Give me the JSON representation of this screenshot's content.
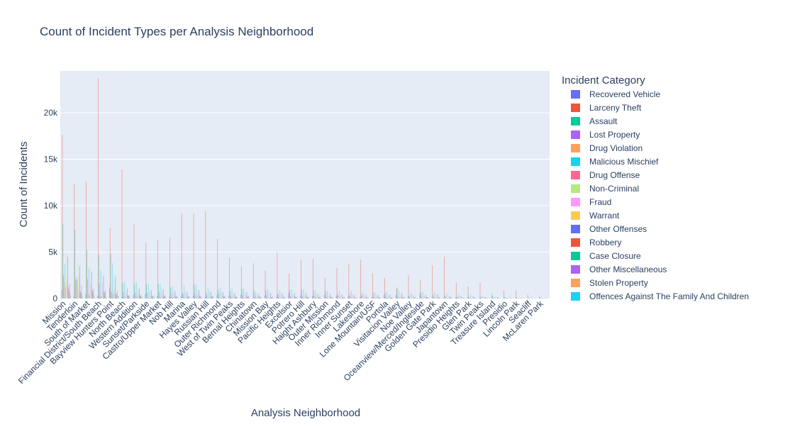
{
  "chart_data": {
    "type": "bar",
    "title": "Count of Incident Types per Analysis Neighborhood",
    "xlabel": "Analysis Neighborhood",
    "ylabel": "Count of Incidents",
    "ylim": [
      0,
      24500
    ],
    "yticks": [
      0,
      5000,
      10000,
      15000,
      20000
    ],
    "ytick_labels": [
      "0",
      "5k",
      "10k",
      "15k",
      "20k"
    ],
    "grid": true,
    "legend_position": "right",
    "legend_title": "Incident Category",
    "categories": [
      "Mission",
      "Tenderloin",
      "South of Market",
      "Financial District/South Beach",
      "Bayview Hunters Point",
      "North Beach",
      "Western Addition",
      "Sunset/Parkside",
      "Castro/Upper Market",
      "Nob Hill",
      "Marina",
      "Hayes Valley",
      "Russian Hill",
      "Outer Richmond",
      "West of Twin Peaks",
      "Bernal Heights",
      "Chinatown",
      "Mission Bay",
      "Pacific Heights",
      "Excelsior",
      "Potrero Hill",
      "Haight Ashbury",
      "Outer Mission",
      "Inner Richmond",
      "Inner Sunset",
      "Lakeshore",
      "Lone Mountain/USF",
      "Portola",
      "Visitacion Valley",
      "Noe Valley",
      "Oceanview/Merced/Ingleside",
      "Golden Gate Park",
      "Japantown",
      "Presidio Heights",
      "Glen Park",
      "Twin Peaks",
      "Treasure Island",
      "Presidio",
      "Lincoln Park",
      "Seacliff",
      "McLaren Park"
    ],
    "series": [
      {
        "name": "Recovered Vehicle",
        "color": "#636efa",
        "values": [
          900,
          200,
          500,
          300,
          1200,
          100,
          400,
          500,
          300,
          150,
          250,
          300,
          150,
          350,
          300,
          400,
          80,
          300,
          200,
          600,
          350,
          250,
          400,
          250,
          250,
          200,
          200,
          400,
          400,
          200,
          500,
          50,
          100,
          150,
          150,
          100,
          100,
          30,
          20,
          20,
          60
        ]
      },
      {
        "name": "Larceny Theft",
        "color": "#ef553b",
        "values": [
          17600,
          12300,
          12600,
          23700,
          7600,
          13900,
          8000,
          6000,
          6300,
          6500,
          9200,
          9100,
          9400,
          6400,
          4400,
          3500,
          3800,
          3000,
          5000,
          2700,
          4200,
          4300,
          2200,
          3300,
          3700,
          4200,
          2700,
          2200,
          1100,
          2500,
          2000,
          3600,
          4500,
          1700,
          1300,
          1700,
          500,
          900,
          900,
          400,
          200
        ]
      },
      {
        "name": "Assault",
        "color": "#00cc96",
        "values": [
          8000,
          7400,
          5200,
          4700,
          4800,
          1700,
          1600,
          1500,
          1500,
          1200,
          600,
          1500,
          700,
          900,
          800,
          1000,
          900,
          900,
          500,
          900,
          1000,
          800,
          800,
          500,
          500,
          500,
          600,
          600,
          1200,
          300,
          700,
          400,
          300,
          200,
          200,
          200,
          300,
          150,
          60,
          40,
          80
        ]
      },
      {
        "name": "Lost Property",
        "color": "#ab63fa",
        "values": [
          2500,
          2000,
          2100,
          1600,
          800,
          700,
          600,
          600,
          700,
          500,
          500,
          500,
          400,
          500,
          300,
          400,
          300,
          400,
          400,
          300,
          300,
          300,
          200,
          300,
          300,
          300,
          200,
          200,
          200,
          200,
          200,
          200,
          150,
          100,
          100,
          80,
          50,
          60,
          30,
          20,
          20
        ]
      },
      {
        "name": "Drug Violation",
        "color": "#ffa15a",
        "values": [
          1800,
          2300,
          600,
          400,
          600,
          200,
          300,
          100,
          200,
          200,
          100,
          200,
          100,
          100,
          100,
          100,
          100,
          100,
          50,
          100,
          100,
          100,
          80,
          50,
          50,
          50,
          50,
          50,
          100,
          30,
          80,
          100,
          30,
          20,
          20,
          20,
          20,
          10,
          10,
          5,
          10
        ]
      },
      {
        "name": "Malicious Mischief",
        "color": "#19d3f3",
        "values": [
          3700,
          2200,
          3200,
          3100,
          3800,
          1800,
          1800,
          1600,
          1600,
          1300,
          1400,
          1500,
          1100,
          1200,
          1100,
          1100,
          700,
          1000,
          900,
          1000,
          1000,
          900,
          800,
          800,
          800,
          700,
          700,
          700,
          900,
          600,
          700,
          700,
          500,
          400,
          400,
          300,
          200,
          150,
          100,
          60,
          80
        ]
      },
      {
        "name": "Drug Offense",
        "color": "#ff6692",
        "values": [
          1200,
          1900,
          400,
          250,
          500,
          150,
          200,
          100,
          150,
          150,
          80,
          150,
          80,
          80,
          80,
          80,
          80,
          80,
          40,
          80,
          80,
          80,
          60,
          40,
          40,
          40,
          40,
          40,
          80,
          20,
          60,
          80,
          20,
          15,
          15,
          15,
          15,
          8,
          8,
          4,
          8
        ]
      },
      {
        "name": "Non-Criminal",
        "color": "#b6e880",
        "values": [
          4900,
          3900,
          3400,
          2800,
          2100,
          1400,
          1200,
          1100,
          1200,
          1000,
          900,
          1000,
          900,
          800,
          700,
          700,
          600,
          700,
          600,
          600,
          600,
          600,
          500,
          500,
          500,
          500,
          500,
          400,
          500,
          400,
          400,
          500,
          300,
          300,
          300,
          200,
          200,
          150,
          100,
          50,
          60
        ]
      },
      {
        "name": "Fraud",
        "color": "#ff97ff",
        "values": [
          1500,
          800,
          1500,
          1800,
          700,
          600,
          700,
          700,
          600,
          700,
          600,
          500,
          700,
          500,
          500,
          500,
          300,
          400,
          500,
          400,
          400,
          400,
          300,
          300,
          400,
          300,
          300,
          300,
          200,
          400,
          300,
          100,
          200,
          300,
          200,
          200,
          50,
          60,
          60,
          50,
          20
        ]
      },
      {
        "name": "Warrant",
        "color": "#fecb52",
        "values": [
          2300,
          2400,
          1400,
          800,
          1100,
          400,
          500,
          300,
          400,
          400,
          200,
          400,
          200,
          200,
          200,
          200,
          200,
          200,
          100,
          200,
          200,
          200,
          200,
          100,
          100,
          100,
          150,
          150,
          200,
          80,
          150,
          200,
          80,
          50,
          50,
          40,
          50,
          20,
          20,
          10,
          20
        ]
      },
      {
        "name": "Other Offenses",
        "color": "#636efa",
        "values": [
          4500,
          3500,
          2900,
          2400,
          2400,
          1100,
          1100,
          900,
          1000,
          800,
          700,
          900,
          700,
          700,
          600,
          700,
          500,
          600,
          500,
          600,
          600,
          500,
          500,
          400,
          400,
          400,
          400,
          400,
          600,
          300,
          400,
          500,
          300,
          200,
          200,
          150,
          150,
          100,
          60,
          40,
          50
        ]
      },
      {
        "name": "Robbery",
        "color": "#ef553b",
        "values": [
          1200,
          800,
          900,
          700,
          500,
          300,
          300,
          300,
          200,
          200,
          150,
          300,
          200,
          200,
          150,
          200,
          200,
          150,
          100,
          200,
          150,
          150,
          150,
          100,
          100,
          100,
          100,
          100,
          150,
          80,
          150,
          100,
          80,
          50,
          50,
          40,
          30,
          20,
          15,
          10,
          15
        ]
      },
      {
        "name": "Case Closure",
        "color": "#00cc96",
        "values": [
          900,
          600,
          700,
          600,
          400,
          300,
          300,
          300,
          300,
          200,
          200,
          200,
          200,
          200,
          200,
          200,
          150,
          150,
          150,
          150,
          150,
          150,
          100,
          100,
          100,
          100,
          100,
          100,
          100,
          100,
          100,
          100,
          80,
          60,
          60,
          50,
          30,
          20,
          20,
          10,
          10
        ]
      },
      {
        "name": "Other Miscellaneous",
        "color": "#ab63fa",
        "values": [
          1600,
          1400,
          1100,
          900,
          800,
          400,
          400,
          300,
          400,
          300,
          300,
          300,
          300,
          300,
          200,
          300,
          200,
          200,
          200,
          200,
          200,
          200,
          200,
          150,
          150,
          150,
          150,
          150,
          200,
          100,
          150,
          150,
          100,
          80,
          80,
          60,
          50,
          30,
          20,
          15,
          20
        ]
      },
      {
        "name": "Stolen Property",
        "color": "#ffa15a",
        "values": [
          600,
          500,
          400,
          300,
          300,
          100,
          150,
          100,
          100,
          100,
          80,
          100,
          80,
          80,
          60,
          80,
          60,
          60,
          50,
          60,
          60,
          60,
          50,
          40,
          40,
          40,
          40,
          40,
          60,
          30,
          50,
          50,
          30,
          20,
          20,
          15,
          15,
          10,
          5,
          5,
          5
        ]
      },
      {
        "name": "Offences Against The Family And Children",
        "color": "#19d3f3",
        "values": [
          300,
          200,
          150,
          80,
          250,
          50,
          100,
          100,
          80,
          50,
          40,
          60,
          40,
          80,
          60,
          80,
          30,
          50,
          40,
          120,
          60,
          50,
          80,
          60,
          60,
          40,
          40,
          80,
          100,
          40,
          100,
          10,
          20,
          30,
          30,
          20,
          20,
          5,
          5,
          5,
          10
        ]
      }
    ]
  }
}
